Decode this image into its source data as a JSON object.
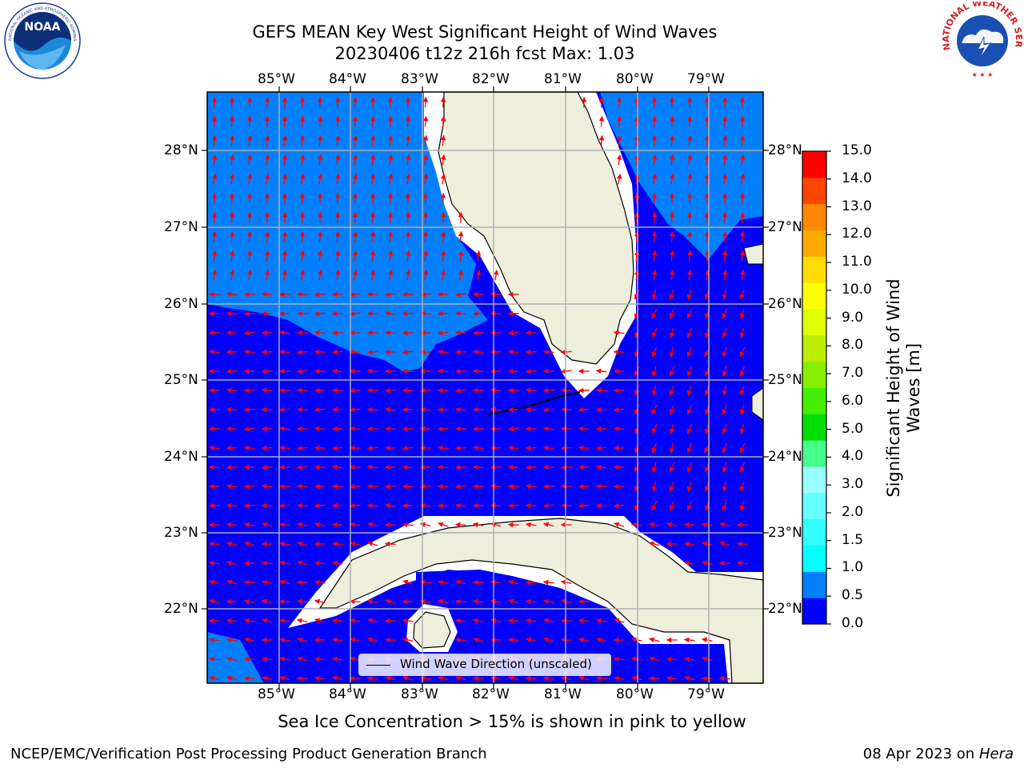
{
  "title_line1": "GEFS MEAN Key West Significant Height of Wind Waves",
  "title_line2": "20230406 t12z 216h fcst   Max: 1.03",
  "map": {
    "lon_ticks": [
      "85°W",
      "84°W",
      "83°W",
      "82°W",
      "81°W",
      "80°W",
      "79°W"
    ],
    "lat_ticks": [
      "28°N",
      "27°N",
      "26°N",
      "25°N",
      "24°N",
      "23°N",
      "22°N"
    ],
    "legend_label": "Wind Wave Direction (unscaled)",
    "colors": {
      "ocean_low": "#0000ff",
      "ocean_mid": "#0080ff",
      "land": "#eeeedd",
      "arrow": "#ff0000",
      "grid": "#b0b0b0"
    }
  },
  "colorbar": {
    "label_line1": "Significant Height of Wind",
    "label_line2": "Waves [m]",
    "ticks": [
      "0.0",
      "0.5",
      "1.0",
      "1.5",
      "2.0",
      "3.0",
      "4.0",
      "5.0",
      "6.0",
      "7.0",
      "8.0",
      "9.0",
      "10.0",
      "11.0",
      "12.0",
      "13.0",
      "14.0",
      "15.0"
    ],
    "colors": [
      "#0000ff",
      "#0080ff",
      "#00ffff",
      "#33ffff",
      "#66ffff",
      "#99ffff",
      "#44ff88",
      "#00dd00",
      "#44ee00",
      "#88ee00",
      "#bbee00",
      "#ddff00",
      "#ffff00",
      "#ffdd00",
      "#ffaa00",
      "#ff8800",
      "#ff4400",
      "#ff0000"
    ]
  },
  "subnote": "Sea Ice Concentration > 15% is shown in pink to yellow",
  "footer_left": "NCEP/EMC/Verification Post Processing Product Generation Branch",
  "footer_right_date": "08 Apr 2023 on",
  "footer_right_machine": "Hera",
  "logos": {
    "left": {
      "name": "noaa-logo",
      "text": "NOAA"
    },
    "right": {
      "name": "nws-logo",
      "text": "NATIONAL WEATHER SERVICE"
    }
  }
}
